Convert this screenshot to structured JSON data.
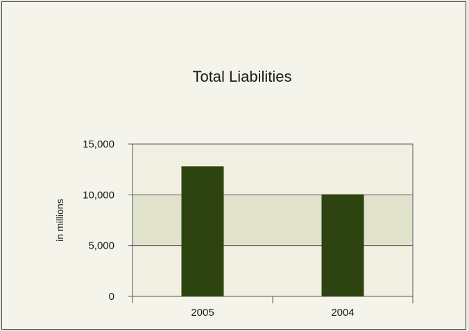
{
  "chart_data": {
    "type": "bar",
    "title": "Total Liabilities",
    "xlabel": "",
    "ylabel": "in millions",
    "categories": [
      "2005",
      "2004"
    ],
    "values": [
      12800,
      10050
    ],
    "ylim": [
      0,
      15000
    ],
    "y_ticks": [
      0,
      5000,
      10000,
      15000
    ],
    "y_tick_labels": [
      "0",
      "5,000",
      "10,000",
      "15,000"
    ],
    "grid": true,
    "legend": "none",
    "colors": {
      "bar": "#2e4410",
      "band_dark": "#e0e2cc",
      "band_light": "#f0efe1",
      "axis": "#555555"
    }
  }
}
